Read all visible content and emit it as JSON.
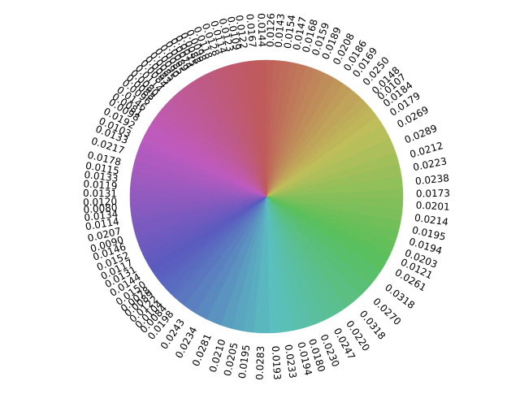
{
  "chart_data": {
    "type": "pie",
    "title": "",
    "start": "top",
    "direction": "clockwise",
    "labels_rotated": true,
    "values": [
      0.0126,
      0.0143,
      0.0154,
      0.0147,
      0.0168,
      0.0159,
      0.0189,
      0.0208,
      0.0186,
      0.0169,
      0.025,
      0.0148,
      0.0107,
      0.0184,
      0.0179,
      0.0269,
      0.0289,
      0.0212,
      0.0223,
      0.0238,
      0.0173,
      0.0201,
      0.0214,
      0.0195,
      0.0194,
      0.0203,
      0.0121,
      0.0261,
      0.0318,
      0.027,
      0.0318,
      0.022,
      0.0247,
      0.023,
      0.018,
      0.0194,
      0.0233,
      0.0193,
      0.0283,
      0.0195,
      0.0205,
      0.021,
      0.0281,
      0.0234,
      0.0243,
      0.0198,
      0.0084,
      0.0104,
      0.0122,
      0.0089,
      0.0078,
      0.015,
      0.0144,
      0.0131,
      0.0117,
      0.0152,
      0.0146,
      0.009,
      0.0207,
      0.0114,
      0.0134,
      0.008,
      0.012,
      0.0131,
      0.0119,
      0.0133,
      0.0115,
      0.0178,
      0.0217,
      0.0133,
      0.0103,
      0.0192,
      0.0098,
      0.0081,
      0.0146,
      0.0096,
      0.0088,
      0.008,
      0.0114,
      0.0084,
      0.0083,
      0.0085,
      0.009,
      0.0085,
      0.0089,
      0.0074,
      0.0075,
      0.0088,
      0.0098,
      0.0118,
      0.0128,
      0.0114,
      0.0123,
      0.0109,
      0.0122,
      0.0167,
      0.0144
    ],
    "color_scheme": "hue wheel: red at top, yellow-green right, green, cyan bottom, blue, magenta left"
  }
}
